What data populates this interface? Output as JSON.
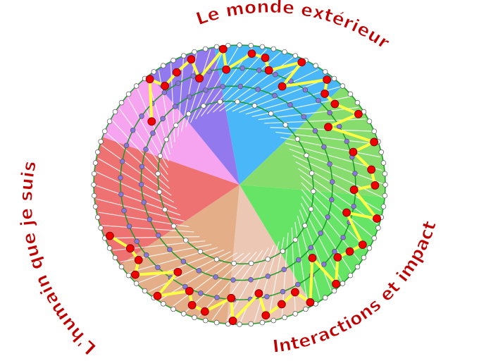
{
  "labels": {
    "outer_world": "Le monde extérieur",
    "self": "L'humain que je suis",
    "interactions": "Interactions et impact"
  },
  "colors": {
    "label_text": "#c00000",
    "ring_lines": "#1a9a2a",
    "path": "#ffff44",
    "path_nodes": "#ee0000",
    "inner_nodes": "#8877dd",
    "sectors": [
      "#4ab8f8",
      "#86dc6c",
      "#66e466",
      "#ecc8b4",
      "#e4ae88",
      "#ee7272",
      "#f6a4f0",
      "#9279ee"
    ]
  }
}
